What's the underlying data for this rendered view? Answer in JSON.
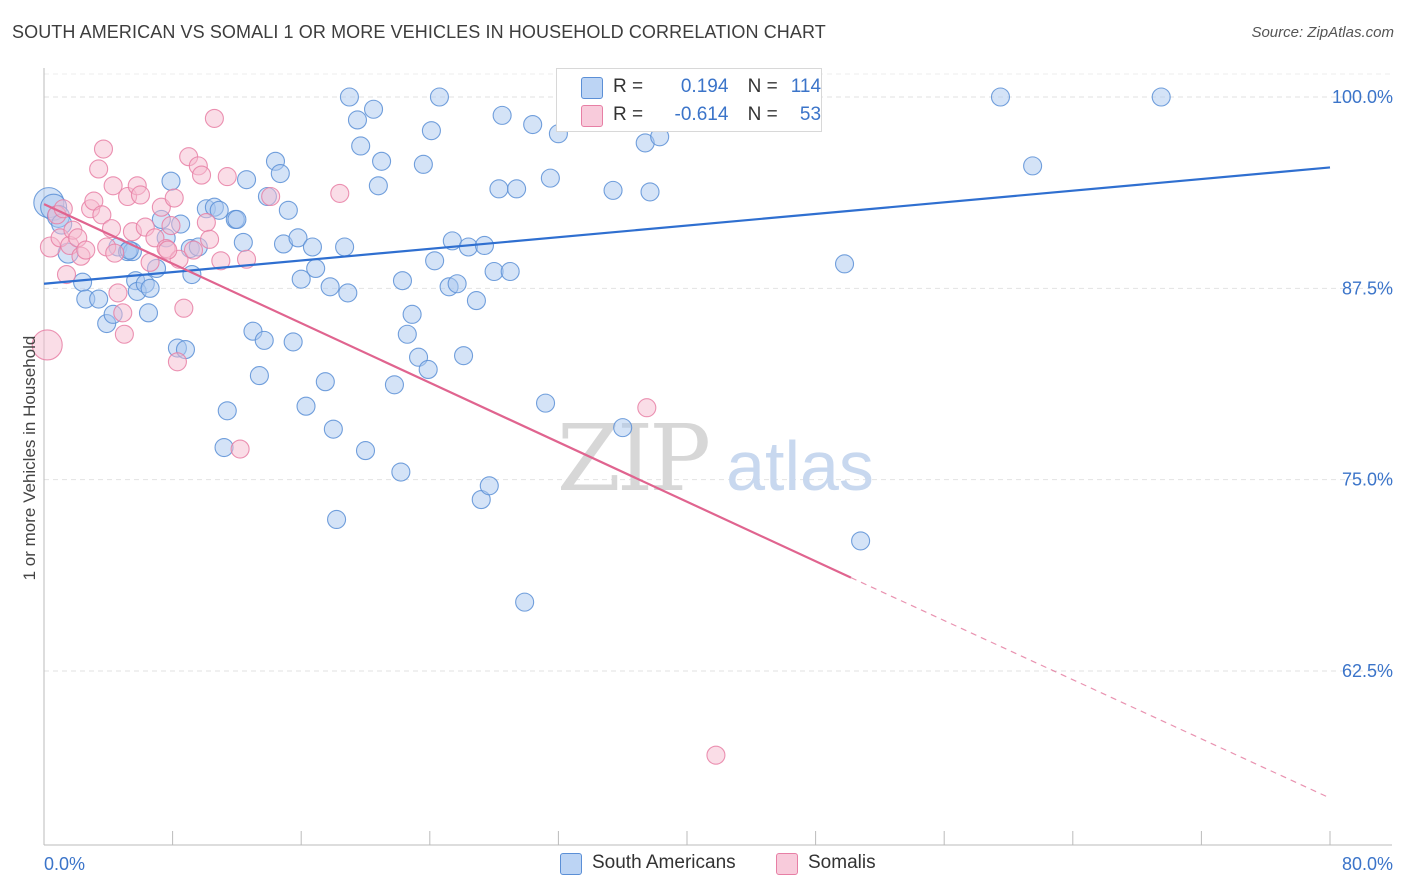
{
  "title": "SOUTH AMERICAN VS SOMALI 1 OR MORE VEHICLES IN HOUSEHOLD CORRELATION CHART",
  "source": "Source: ZipAtlas.com",
  "watermark": {
    "zip": "ZIP",
    "atlas": "atlas"
  },
  "legend": {
    "rows": [
      {
        "r_label": "R =",
        "r_value": "0.194",
        "n_label": "N =",
        "n_value": "114"
      },
      {
        "r_label": "R =",
        "r_value": "-0.614",
        "n_label": "N =",
        "n_value": "53"
      }
    ]
  },
  "colors": {
    "blue_fill": "#a9c7f0",
    "blue_stroke": "#5b8fd6",
    "blue_line": "#2f6fd0",
    "pink_fill": "#f5bcd0",
    "pink_stroke": "#e77fa5",
    "pink_line": "#e0648f",
    "axis_text": "#3b74c9",
    "grid": "#e2e2e2"
  },
  "chart_data": {
    "type": "scatter",
    "title": "SOUTH AMERICAN VS SOMALI 1 OR MORE VEHICLES IN HOUSEHOLD CORRELATION CHART",
    "xlabel": "",
    "ylabel": "1 or more Vehicles in Household",
    "xlim": [
      0,
      80
    ],
    "ylim": [
      52,
      102.5
    ],
    "x_tick_labels": [
      "0.0%",
      "80.0%"
    ],
    "y_ticks": [
      62.5,
      75.0,
      87.5,
      100.0
    ],
    "y_tick_labels": [
      "62.5%",
      "75.0%",
      "87.5%",
      "100.0%"
    ],
    "grid": true,
    "legend_position": "top-center",
    "series": [
      {
        "name": "South Americans",
        "color": "#a9c7f0",
        "r": 0.194,
        "n": 114,
        "trend": {
          "x": [
            0,
            80
          ],
          "y": [
            87.8,
            95.4
          ]
        },
        "points": [
          [
            0.3,
            93.1,
            14
          ],
          [
            0.6,
            92.8,
            12
          ],
          [
            0.9,
            92.2,
            10
          ],
          [
            1.1,
            91.7,
            9
          ],
          [
            1.5,
            89.8,
            9
          ],
          [
            2.4,
            87.9,
            8
          ],
          [
            2.6,
            86.8,
            8
          ],
          [
            3.4,
            86.8,
            8
          ],
          [
            3.9,
            85.2,
            8
          ],
          [
            4.3,
            85.8,
            8
          ],
          [
            4.6,
            90.2,
            8
          ],
          [
            5.2,
            89.9,
            8
          ],
          [
            5.5,
            89.9,
            8
          ],
          [
            5.3,
            90.0,
            8
          ],
          [
            5.7,
            88.0,
            8
          ],
          [
            5.8,
            87.3,
            8
          ],
          [
            6.3,
            87.8,
            8
          ],
          [
            6.5,
            85.9,
            8
          ],
          [
            6.6,
            87.5,
            8
          ],
          [
            7.0,
            88.8,
            8
          ],
          [
            7.3,
            92.0,
            8
          ],
          [
            7.6,
            90.8,
            8
          ],
          [
            7.9,
            94.5,
            8
          ],
          [
            8.3,
            83.6,
            8
          ],
          [
            8.5,
            91.7,
            8
          ],
          [
            8.8,
            83.5,
            8
          ],
          [
            9.1,
            90.1,
            8
          ],
          [
            9.2,
            88.4,
            8
          ],
          [
            9.6,
            90.2,
            8
          ],
          [
            10.1,
            92.7,
            8
          ],
          [
            10.6,
            92.8,
            8
          ],
          [
            10.9,
            92.6,
            8
          ],
          [
            11.2,
            77.1,
            8
          ],
          [
            11.4,
            79.5,
            8
          ],
          [
            11.9,
            92.0,
            8
          ],
          [
            12.0,
            92.0,
            8
          ],
          [
            12.4,
            90.5,
            8
          ],
          [
            12.6,
            94.6,
            8
          ],
          [
            13.0,
            84.7,
            8
          ],
          [
            13.4,
            81.8,
            8
          ],
          [
            13.7,
            84.1,
            8
          ],
          [
            13.9,
            93.5,
            8
          ],
          [
            14.4,
            95.8,
            8
          ],
          [
            14.7,
            95.0,
            8
          ],
          [
            14.9,
            90.4,
            8
          ],
          [
            15.2,
            92.6,
            8
          ],
          [
            15.5,
            84.0,
            8
          ],
          [
            15.8,
            90.8,
            8
          ],
          [
            16.0,
            88.1,
            8
          ],
          [
            16.3,
            79.8,
            8
          ],
          [
            16.7,
            90.2,
            8
          ],
          [
            16.9,
            88.8,
            8
          ],
          [
            17.5,
            81.4,
            8
          ],
          [
            17.8,
            87.6,
            8
          ],
          [
            18.0,
            78.3,
            8
          ],
          [
            18.2,
            72.4,
            8
          ],
          [
            18.7,
            90.2,
            8
          ],
          [
            18.9,
            87.2,
            8
          ],
          [
            19.0,
            100.0,
            8
          ],
          [
            19.5,
            98.5,
            8
          ],
          [
            19.7,
            96.8,
            8
          ],
          [
            20.0,
            76.9,
            8
          ],
          [
            20.5,
            99.2,
            8
          ],
          [
            20.8,
            94.2,
            8
          ],
          [
            21.0,
            95.8,
            8
          ],
          [
            21.8,
            81.2,
            8
          ],
          [
            22.2,
            75.5,
            8
          ],
          [
            22.3,
            88.0,
            8
          ],
          [
            22.6,
            84.5,
            8
          ],
          [
            22.9,
            85.8,
            8
          ],
          [
            23.3,
            83.0,
            8
          ],
          [
            23.6,
            95.6,
            8
          ],
          [
            23.9,
            82.2,
            8
          ],
          [
            24.1,
            97.8,
            8
          ],
          [
            24.3,
            89.3,
            8
          ],
          [
            24.6,
            100.0,
            8
          ],
          [
            25.2,
            87.6,
            8
          ],
          [
            25.4,
            90.6,
            8
          ],
          [
            25.7,
            87.8,
            8
          ],
          [
            26.1,
            83.1,
            8
          ],
          [
            26.4,
            90.2,
            8
          ],
          [
            26.9,
            86.7,
            8
          ],
          [
            27.2,
            73.7,
            8
          ],
          [
            27.4,
            90.3,
            8
          ],
          [
            27.7,
            74.6,
            8
          ],
          [
            28.0,
            88.6,
            8
          ],
          [
            28.3,
            94.0,
            8
          ],
          [
            28.5,
            98.8,
            8
          ],
          [
            29.0,
            88.6,
            8
          ],
          [
            29.4,
            94.0,
            8
          ],
          [
            29.9,
            67.0,
            8
          ],
          [
            30.4,
            98.2,
            8
          ],
          [
            31.2,
            80.0,
            8
          ],
          [
            31.5,
            94.7,
            8
          ],
          [
            32.0,
            97.6,
            8
          ],
          [
            32.6,
            100.0,
            8
          ],
          [
            33.6,
            98.6,
            8
          ],
          [
            35.4,
            93.9,
            8
          ],
          [
            36.0,
            78.4,
            8
          ],
          [
            36.4,
            100.0,
            8
          ],
          [
            37.4,
            97.0,
            8
          ],
          [
            37.7,
            93.8,
            8
          ],
          [
            38.3,
            97.4,
            8
          ],
          [
            49.8,
            89.1,
            8
          ],
          [
            50.8,
            71.0,
            8
          ],
          [
            59.5,
            100.0,
            8
          ],
          [
            61.5,
            95.5,
            8
          ],
          [
            69.5,
            100.0,
            8
          ]
        ]
      },
      {
        "name": "Somalis",
        "color": "#f5bcd0",
        "r": -0.614,
        "n": 53,
        "trend": {
          "x": [
            0,
            50.2
          ],
          "y": [
            93.0,
            68.6
          ]
        },
        "trend_dashed": {
          "x": [
            50.2,
            80
          ],
          "y": [
            68.6,
            54.2
          ]
        },
        "points": [
          [
            0.2,
            83.8,
            14
          ],
          [
            0.4,
            90.2,
            9
          ],
          [
            0.8,
            92.3,
            8
          ],
          [
            1.0,
            90.8,
            8
          ],
          [
            1.2,
            92.7,
            8
          ],
          [
            1.4,
            88.4,
            8
          ],
          [
            1.6,
            90.3,
            8
          ],
          [
            1.8,
            91.3,
            8
          ],
          [
            2.1,
            90.8,
            8
          ],
          [
            2.3,
            89.6,
            8
          ],
          [
            2.6,
            90.0,
            8
          ],
          [
            2.9,
            92.7,
            8
          ],
          [
            3.1,
            93.2,
            8
          ],
          [
            3.4,
            95.3,
            8
          ],
          [
            3.6,
            92.3,
            8
          ],
          [
            3.9,
            90.2,
            8
          ],
          [
            4.2,
            91.4,
            8
          ],
          [
            4.4,
            89.8,
            8
          ],
          [
            4.6,
            87.2,
            8
          ],
          [
            4.9,
            85.9,
            8
          ],
          [
            5.2,
            93.5,
            8
          ],
          [
            5.5,
            91.2,
            8
          ],
          [
            5.8,
            94.2,
            8
          ],
          [
            6.0,
            93.6,
            8
          ],
          [
            6.3,
            91.5,
            8
          ],
          [
            6.6,
            89.2,
            8
          ],
          [
            6.9,
            90.8,
            8
          ],
          [
            7.3,
            92.8,
            8
          ],
          [
            7.6,
            90.1,
            8
          ],
          [
            7.9,
            91.6,
            8
          ],
          [
            8.1,
            93.4,
            8
          ],
          [
            8.4,
            89.4,
            8
          ],
          [
            8.7,
            86.2,
            8
          ],
          [
            9.0,
            96.1,
            8
          ],
          [
            9.3,
            90.0,
            8
          ],
          [
            9.6,
            95.5,
            8
          ],
          [
            9.8,
            94.9,
            8
          ],
          [
            10.1,
            91.8,
            8
          ],
          [
            10.3,
            90.7,
            8
          ],
          [
            10.6,
            98.6,
            8
          ],
          [
            11.0,
            89.3,
            8
          ],
          [
            11.4,
            94.8,
            8
          ],
          [
            12.2,
            77.0,
            8
          ],
          [
            12.6,
            89.4,
            8
          ],
          [
            14.1,
            93.5,
            8
          ],
          [
            18.4,
            93.7,
            8
          ],
          [
            37.5,
            79.7,
            8
          ],
          [
            41.8,
            57.0,
            8
          ],
          [
            3.7,
            96.6,
            8
          ],
          [
            4.3,
            94.2,
            8
          ],
          [
            8.3,
            82.7,
            8
          ],
          [
            7.7,
            90.0,
            8
          ],
          [
            5.0,
            84.5,
            8
          ]
        ]
      }
    ]
  },
  "bottom_legend": [
    {
      "label": "South Americans"
    },
    {
      "label": "Somalis"
    }
  ]
}
